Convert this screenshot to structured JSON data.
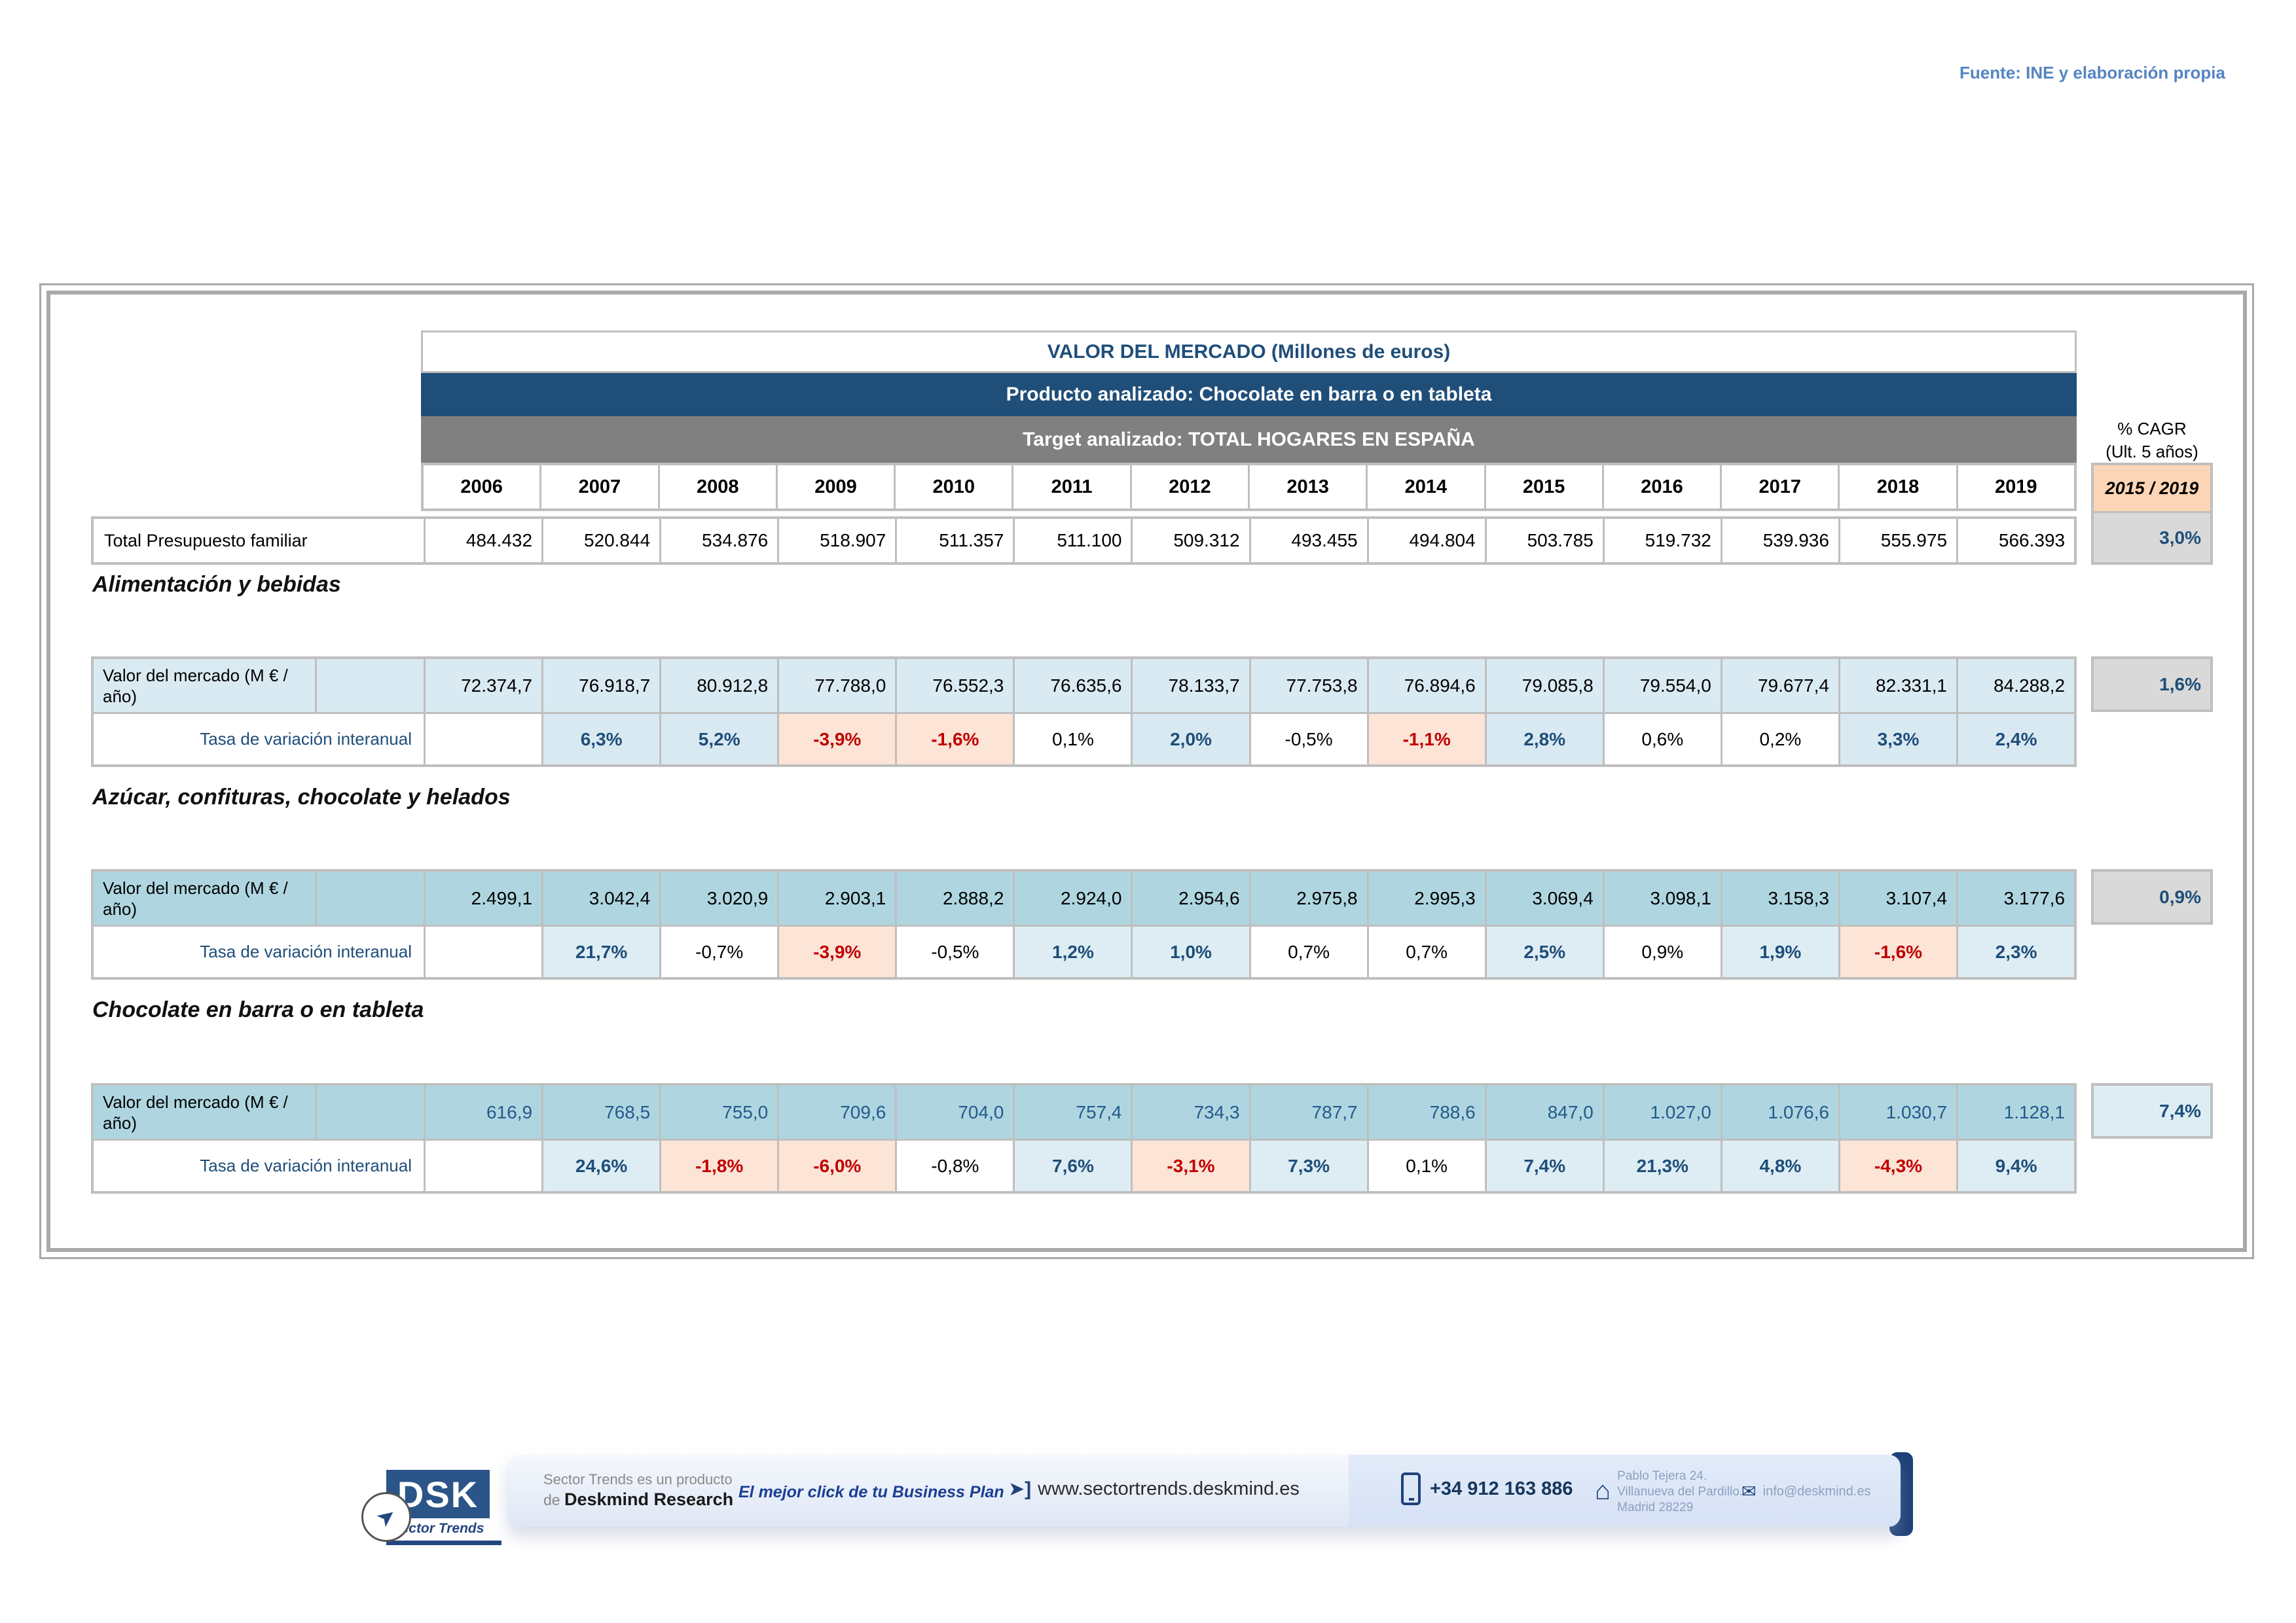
{
  "source_note": "Fuente: INE y elaboración propia",
  "table": {
    "title": "VALOR DEL MERCADO (Millones de euros)",
    "product_band": "Producto analizado: Chocolate en barra o en tableta",
    "target_band": "Target analizado: TOTAL HOGARES EN ESPAÑA",
    "years": [
      "2006",
      "2007",
      "2008",
      "2009",
      "2010",
      "2011",
      "2012",
      "2013",
      "2014",
      "2015",
      "2016",
      "2017",
      "2018",
      "2019"
    ],
    "cagr_header_line1": "% CAGR",
    "cagr_header_line2": "(Ult. 5 años)",
    "cagr_period": "2015 / 2019",
    "budget_row": {
      "label": "Total Presupuesto familiar",
      "values": [
        "484.432",
        "520.844",
        "534.876",
        "518.907",
        "511.357",
        "511.100",
        "509.312",
        "493.455",
        "494.804",
        "503.785",
        "519.732",
        "539.936",
        "555.975",
        "566.393"
      ],
      "cagr": "3,0%"
    }
  },
  "sections": [
    {
      "heading": "Alimentación y bebidas",
      "value_label": "Valor del mercado (M € / año)",
      "rate_label": "Tasa de variación interanual",
      "values": [
        "72.374,7",
        "76.918,7",
        "80.912,8",
        "77.788,0",
        "76.552,3",
        "76.635,6",
        "78.133,7",
        "77.753,8",
        "76.894,6",
        "79.085,8",
        "79.554,0",
        "79.677,4",
        "82.331,1",
        "84.288,2"
      ],
      "rates": [
        "",
        "6,3%",
        "5,2%",
        "-3,9%",
        "-1,6%",
        "0,1%",
        "2,0%",
        "-0,5%",
        "-1,1%",
        "2,8%",
        "0,6%",
        "0,2%",
        "3,3%",
        "2,4%"
      ],
      "cagr": "1,6%"
    },
    {
      "heading": "Azúcar, confituras, chocolate y helados",
      "value_label": "Valor del mercado (M € / año)",
      "rate_label": "Tasa de variación interanual",
      "values": [
        "2.499,1",
        "3.042,4",
        "3.020,9",
        "2.903,1",
        "2.888,2",
        "2.924,0",
        "2.954,6",
        "2.975,8",
        "2.995,3",
        "3.069,4",
        "3.098,1",
        "3.158,3",
        "3.107,4",
        "3.177,6"
      ],
      "rates": [
        "",
        "21,7%",
        "-0,7%",
        "-3,9%",
        "-0,5%",
        "1,2%",
        "1,0%",
        "0,7%",
        "0,7%",
        "2,5%",
        "0,9%",
        "1,9%",
        "-1,6%",
        "2,3%"
      ],
      "cagr": "0,9%"
    },
    {
      "heading": "Chocolate en barra o en tableta",
      "value_label": "Valor del mercado (M € / año)",
      "rate_label": "Tasa de variación interanual",
      "values": [
        "616,9",
        "768,5",
        "755,0",
        "709,6",
        "704,0",
        "757,4",
        "734,3",
        "787,7",
        "788,6",
        "847,0",
        "1.027,0",
        "1.076,6",
        "1.030,7",
        "1.128,1"
      ],
      "rates": [
        "",
        "24,6%",
        "-1,8%",
        "-6,0%",
        "-0,8%",
        "7,6%",
        "-3,1%",
        "7,3%",
        "0,1%",
        "7,4%",
        "21,3%",
        "4,8%",
        "-4,3%",
        "9,4%"
      ],
      "cagr": "7,4%"
    }
  ],
  "footer": {
    "logo_text": "DSK",
    "logo_sub": "Sector Trends",
    "product_line1": "Sector Trends es un producto",
    "product_line2_prefix": "de ",
    "product_line2_name": "Deskmind Research",
    "slogan": "El mejor click de tu Business Plan",
    "url": "www.sectortrends.deskmind.es",
    "phone": "+34 912 163 886",
    "address_line1": "Pablo Tejera 24.",
    "address_line2": "Villanueva del Pardillo.",
    "address_line3": "Madrid 28229",
    "email": "info@deskmind.es"
  },
  "colors": {
    "navy": "#1F4E79",
    "band_gray": "#808080",
    "border_gray": "#BFBFBF",
    "peach_header": "#FBD5B5",
    "peach_negative": "#FCE4D6",
    "negative_red": "#C00000",
    "light_blue_section1": "#DAEAF2",
    "medium_blue_sections": "#AFD6E0",
    "highlight_blue": "#DEEDF4",
    "cagr_gray": "#D9D9D9",
    "source_note_blue": "#5584C2",
    "footer_navy": "#1B3F94"
  }
}
